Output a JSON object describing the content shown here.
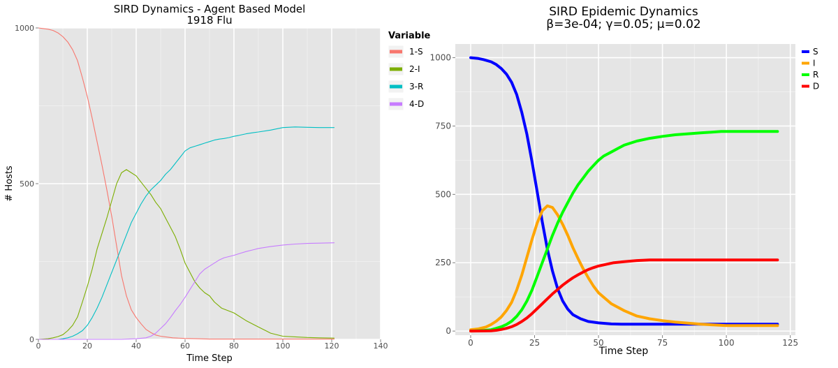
{
  "chart_data": [
    {
      "type": "line",
      "title": "SIRD Dynamics - Agent Based Model",
      "subtitle": "1918 Flu",
      "xlabel": "Time Step",
      "ylabel": "# Hosts",
      "xlim": [
        0,
        140
      ],
      "ylim": [
        0,
        1000
      ],
      "xticks": [
        "0",
        "20",
        "40",
        "60",
        "80",
        "100",
        "120",
        "140"
      ],
      "yticks": [
        "0",
        "500",
        "1000"
      ],
      "grid": true,
      "legend_title": "Variable",
      "legend_position": "right",
      "series": [
        {
          "name": "1-S",
          "color": "#F8766D",
          "x": [
            0,
            2,
            4,
            6,
            8,
            10,
            12,
            14,
            16,
            18,
            20,
            22,
            24,
            26,
            28,
            30,
            32,
            34,
            36,
            38,
            40,
            42,
            44,
            46,
            48,
            50,
            55,
            60,
            65,
            70,
            80,
            90,
            100,
            110,
            121
          ],
          "y": [
            1000,
            998,
            996,
            992,
            984,
            972,
            955,
            930,
            895,
            840,
            780,
            710,
            635,
            560,
            480,
            395,
            300,
            205,
            140,
            95,
            70,
            50,
            32,
            22,
            14,
            10,
            5,
            3,
            2,
            1,
            1,
            1,
            1,
            1,
            1
          ]
        },
        {
          "name": "2-I",
          "color": "#7CAE00",
          "x": [
            0,
            4,
            6,
            8,
            10,
            12,
            14,
            16,
            18,
            20,
            22,
            24,
            26,
            28,
            30,
            32,
            34,
            36,
            38,
            40,
            42,
            44,
            46,
            48,
            50,
            52,
            54,
            56,
            58,
            60,
            62,
            64,
            66,
            68,
            70,
            72,
            75,
            80,
            85,
            90,
            95,
            100,
            105,
            110,
            115,
            121
          ],
          "y": [
            0,
            2,
            5,
            9,
            15,
            28,
            45,
            72,
            120,
            170,
            225,
            290,
            340,
            390,
            445,
            500,
            535,
            545,
            535,
            525,
            505,
            485,
            465,
            440,
            420,
            390,
            360,
            330,
            290,
            245,
            215,
            185,
            165,
            150,
            140,
            120,
            100,
            85,
            60,
            40,
            20,
            10,
            8,
            6,
            5,
            4
          ]
        },
        {
          "name": "3-R",
          "color": "#00BFC4",
          "x": [
            0,
            8,
            10,
            12,
            14,
            16,
            18,
            20,
            22,
            24,
            26,
            28,
            30,
            32,
            34,
            36,
            38,
            40,
            42,
            44,
            46,
            48,
            50,
            52,
            54,
            56,
            58,
            60,
            62,
            64,
            66,
            68,
            70,
            72,
            74,
            76,
            78,
            80,
            82,
            85,
            88,
            90,
            95,
            100,
            105,
            110,
            115,
            121
          ],
          "y": [
            0,
            0,
            2,
            5,
            10,
            18,
            28,
            45,
            70,
            100,
            135,
            175,
            215,
            255,
            295,
            335,
            375,
            405,
            435,
            460,
            480,
            495,
            510,
            530,
            545,
            565,
            585,
            605,
            615,
            620,
            625,
            630,
            635,
            640,
            643,
            645,
            648,
            652,
            655,
            660,
            664,
            666,
            672,
            680,
            682,
            681,
            680,
            680
          ]
        },
        {
          "name": "4-D",
          "color": "#C77CFF",
          "x": [
            0,
            34,
            40,
            44,
            46,
            48,
            50,
            52,
            54,
            56,
            58,
            60,
            62,
            64,
            66,
            68,
            70,
            72,
            74,
            76,
            78,
            80,
            82,
            85,
            88,
            90,
            95,
            100,
            105,
            110,
            115,
            121
          ],
          "y": [
            0,
            0,
            2,
            5,
            10,
            20,
            35,
            50,
            70,
            92,
            112,
            135,
            160,
            185,
            210,
            225,
            235,
            245,
            255,
            262,
            266,
            270,
            275,
            282,
            288,
            292,
            298,
            303,
            306,
            308,
            309,
            310
          ]
        }
      ]
    },
    {
      "type": "line",
      "title": "SIRD Epidemic Dynamics",
      "subtitle": "β=3e-04; γ=0.05; μ=0.02",
      "xlabel": "Time Step",
      "ylabel": "",
      "xlim": [
        -6,
        127
      ],
      "ylim": [
        -15,
        1050
      ],
      "xticks": [
        "0",
        "25",
        "50",
        "75",
        "100",
        "125"
      ],
      "yticks": [
        "0",
        "250",
        "500",
        "750",
        "1000"
      ],
      "grid": true,
      "legend_position": "top-right",
      "series": [
        {
          "name": "S",
          "color": "#0000FF",
          "x": [
            0,
            3,
            5,
            8,
            10,
            12,
            14,
            16,
            18,
            20,
            22,
            24,
            26,
            28,
            30,
            32,
            34,
            36,
            38,
            40,
            43,
            46,
            50,
            55,
            60,
            70,
            80,
            90,
            100,
            110,
            120
          ],
          "y": [
            1000,
            997,
            993,
            985,
            975,
            960,
            940,
            910,
            865,
            800,
            720,
            620,
            510,
            400,
            300,
            220,
            155,
            110,
            80,
            60,
            45,
            35,
            30,
            26,
            25,
            25,
            25,
            25,
            25,
            25,
            25
          ]
        },
        {
          "name": "I",
          "color": "#FFA500",
          "x": [
            0,
            3,
            6,
            8,
            10,
            12,
            14,
            16,
            18,
            20,
            22,
            24,
            26,
            28,
            30,
            32,
            34,
            36,
            38,
            40,
            42,
            44,
            46,
            48,
            50,
            55,
            60,
            65,
            70,
            75,
            80,
            90,
            100,
            110,
            120
          ],
          "y": [
            5,
            8,
            15,
            24,
            36,
            52,
            75,
            105,
            150,
            205,
            270,
            335,
            395,
            440,
            458,
            452,
            425,
            390,
            350,
            305,
            265,
            228,
            195,
            165,
            140,
            100,
            75,
            55,
            45,
            38,
            33,
            25,
            20,
            20,
            20
          ]
        },
        {
          "name": "R",
          "color": "#00FF00",
          "x": [
            0,
            5,
            8,
            10,
            12,
            14,
            16,
            18,
            20,
            22,
            24,
            26,
            28,
            30,
            32,
            34,
            36,
            38,
            40,
            42,
            44,
            46,
            48,
            50,
            52,
            55,
            58,
            60,
            65,
            70,
            75,
            80,
            90,
            98,
            110,
            120
          ],
          "y": [
            0,
            2,
            5,
            10,
            16,
            24,
            36,
            54,
            78,
            110,
            150,
            200,
            250,
            300,
            350,
            395,
            435,
            470,
            505,
            535,
            560,
            585,
            605,
            625,
            640,
            655,
            670,
            680,
            695,
            705,
            712,
            718,
            725,
            730,
            730,
            730
          ]
        },
        {
          "name": "D",
          "color": "#FF0000",
          "x": [
            0,
            8,
            10,
            12,
            14,
            16,
            18,
            20,
            22,
            24,
            26,
            28,
            30,
            32,
            34,
            36,
            38,
            40,
            42,
            44,
            46,
            48,
            50,
            53,
            56,
            60,
            65,
            70,
            73,
            80,
            90,
            100,
            110,
            120
          ],
          "y": [
            0,
            1,
            3,
            6,
            10,
            16,
            24,
            35,
            48,
            64,
            82,
            100,
            118,
            136,
            152,
            168,
            182,
            195,
            206,
            216,
            225,
            232,
            238,
            244,
            250,
            254,
            258,
            260,
            260,
            260,
            260,
            260,
            260,
            260
          ]
        }
      ]
    }
  ]
}
